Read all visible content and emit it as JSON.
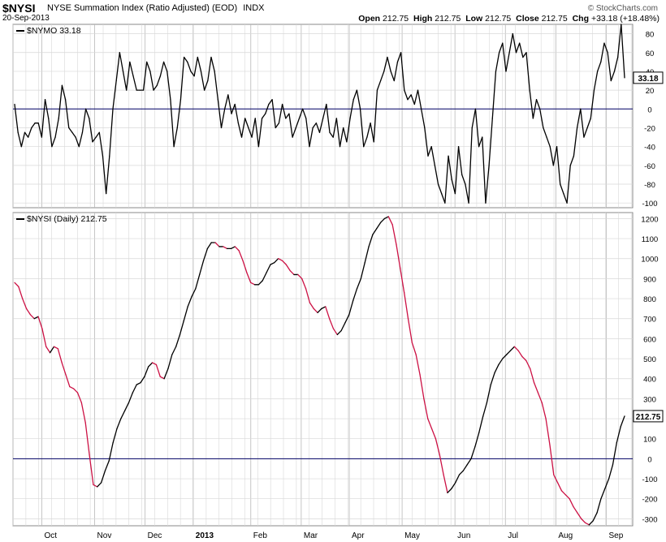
{
  "header": {
    "symbol": "$NYSI",
    "description": "NYSE Summation Index (Ratio Adjusted) (EOD)",
    "exchange": "INDX",
    "date": "20-Sep-2013",
    "credit": "© StockCharts.com",
    "open_label": "Open",
    "open": "212.75",
    "high_label": "High",
    "high": "212.75",
    "low_label": "Low",
    "low": "212.75",
    "close_label": "Close",
    "close": "212.75",
    "chg_label": "Chg",
    "chg": "+33.18 (+18.48%)"
  },
  "colors": {
    "line": "#000000",
    "falling": "#cc1144",
    "zero": "#000066",
    "grid": "#d8d8d8"
  },
  "chart_data": [
    {
      "type": "line",
      "series": [
        {
          "name": "$NYMO",
          "last_value_label": "33.18",
          "values": [
            5,
            -25,
            -40,
            -25,
            -30,
            -20,
            -15,
            -15,
            -30,
            10,
            -10,
            -40,
            -30,
            -10,
            25,
            10,
            -20,
            -25,
            -30,
            -40,
            -25,
            0,
            -10,
            -35,
            -30,
            -25,
            -50,
            -90,
            -50,
            0,
            30,
            60,
            40,
            20,
            50,
            35,
            20,
            20,
            20,
            50,
            40,
            20,
            25,
            35,
            50,
            40,
            10,
            -40,
            -20,
            10,
            55,
            50,
            40,
            35,
            55,
            40,
            20,
            30,
            55,
            40,
            10,
            -20,
            0,
            15,
            -5,
            5,
            -15,
            -30,
            -10,
            -20,
            -30,
            -10,
            -40,
            -10,
            -5,
            5,
            10,
            -20,
            -15,
            5,
            -10,
            -5,
            -30,
            -20,
            -10,
            0,
            -10,
            -40,
            -20,
            -15,
            -25,
            -10,
            5,
            -25,
            -30,
            -10,
            -40,
            -20,
            -35,
            -10,
            10,
            20,
            0,
            -40,
            -30,
            -15,
            -35,
            20,
            30,
            40,
            55,
            40,
            30,
            50,
            60,
            20,
            10,
            15,
            5,
            20,
            0,
            -20,
            -50,
            -40,
            -60,
            -80,
            -90,
            -100,
            -50,
            -75,
            -90,
            -40,
            -70,
            -80,
            -100,
            -20,
            0,
            -40,
            -30,
            -100,
            -60,
            -10,
            40,
            60,
            70,
            40,
            60,
            80,
            60,
            70,
            55,
            60,
            20,
            -10,
            10,
            0,
            -20,
            -30,
            -40,
            -60,
            -40,
            -80,
            -90,
            -100,
            -60,
            -50,
            -20,
            0,
            -30,
            -20,
            -10,
            20,
            40,
            50,
            70,
            60,
            30,
            40,
            55,
            90,
            33.18
          ]
        }
      ],
      "ylim": [
        -105,
        90
      ],
      "y_ticks": [
        80,
        60,
        40,
        20,
        0,
        -20,
        -40,
        -60,
        -80,
        -100
      ],
      "y_tick_labels": [
        "80",
        "60",
        "40",
        "20",
        "0",
        "-20",
        "-40",
        "-60",
        "-80",
        "-100"
      ]
    },
    {
      "type": "line",
      "series": [
        {
          "name": "$NYSI (Daily)",
          "last_value_label": "212.75",
          "values": [
            880,
            860,
            800,
            750,
            720,
            700,
            710,
            650,
            560,
            530,
            560,
            550,
            480,
            420,
            360,
            350,
            330,
            280,
            180,
            20,
            -130,
            -140,
            -120,
            -60,
            -10,
            80,
            150,
            200,
            240,
            280,
            330,
            370,
            380,
            410,
            460,
            480,
            470,
            410,
            400,
            450,
            520,
            560,
            620,
            690,
            760,
            810,
            850,
            920,
            990,
            1050,
            1080,
            1080,
            1060,
            1060,
            1050,
            1050,
            1060,
            1040,
            990,
            930,
            880,
            870,
            870,
            890,
            930,
            970,
            980,
            1000,
            990,
            970,
            940,
            920,
            920,
            900,
            850,
            780,
            750,
            730,
            750,
            760,
            700,
            650,
            620,
            640,
            680,
            720,
            790,
            850,
            900,
            980,
            1060,
            1120,
            1150,
            1180,
            1200,
            1210,
            1170,
            1070,
            950,
            830,
            700,
            580,
            520,
            420,
            300,
            200,
            150,
            100,
            20,
            -80,
            -170,
            -150,
            -120,
            -80,
            -60,
            -30,
            0,
            60,
            130,
            210,
            280,
            370,
            430,
            470,
            500,
            520,
            540,
            560,
            540,
            510,
            490,
            450,
            380,
            330,
            280,
            200,
            70,
            -80,
            -120,
            -160,
            -180,
            -200,
            -240,
            -270,
            -300,
            -320,
            -330,
            -310,
            -270,
            -200,
            -150,
            -100,
            -30,
            80,
            160,
            212.75
          ]
        }
      ],
      "ylim": [
        -335,
        1230
      ],
      "y_ticks": [
        1200,
        1100,
        1000,
        900,
        800,
        700,
        600,
        500,
        400,
        300,
        200,
        100,
        0,
        -100,
        -200,
        -300
      ],
      "y_tick_labels": [
        "1200",
        "1100",
        "1000",
        "900",
        "800",
        "700",
        "600",
        "500",
        "400",
        "300",
        "200",
        "100",
        "0",
        "-100",
        "-200",
        "-300"
      ]
    }
  ],
  "x_axis": {
    "labels": [
      "Oct",
      "Nov",
      "Dec",
      "2013",
      "Feb",
      "Mar",
      "Apr",
      "May",
      "Jun",
      "Jul",
      "Aug",
      "Sep"
    ],
    "positions": [
      12,
      34,
      55,
      75,
      99,
      120,
      140,
      162,
      184,
      205,
      226,
      247
    ]
  }
}
